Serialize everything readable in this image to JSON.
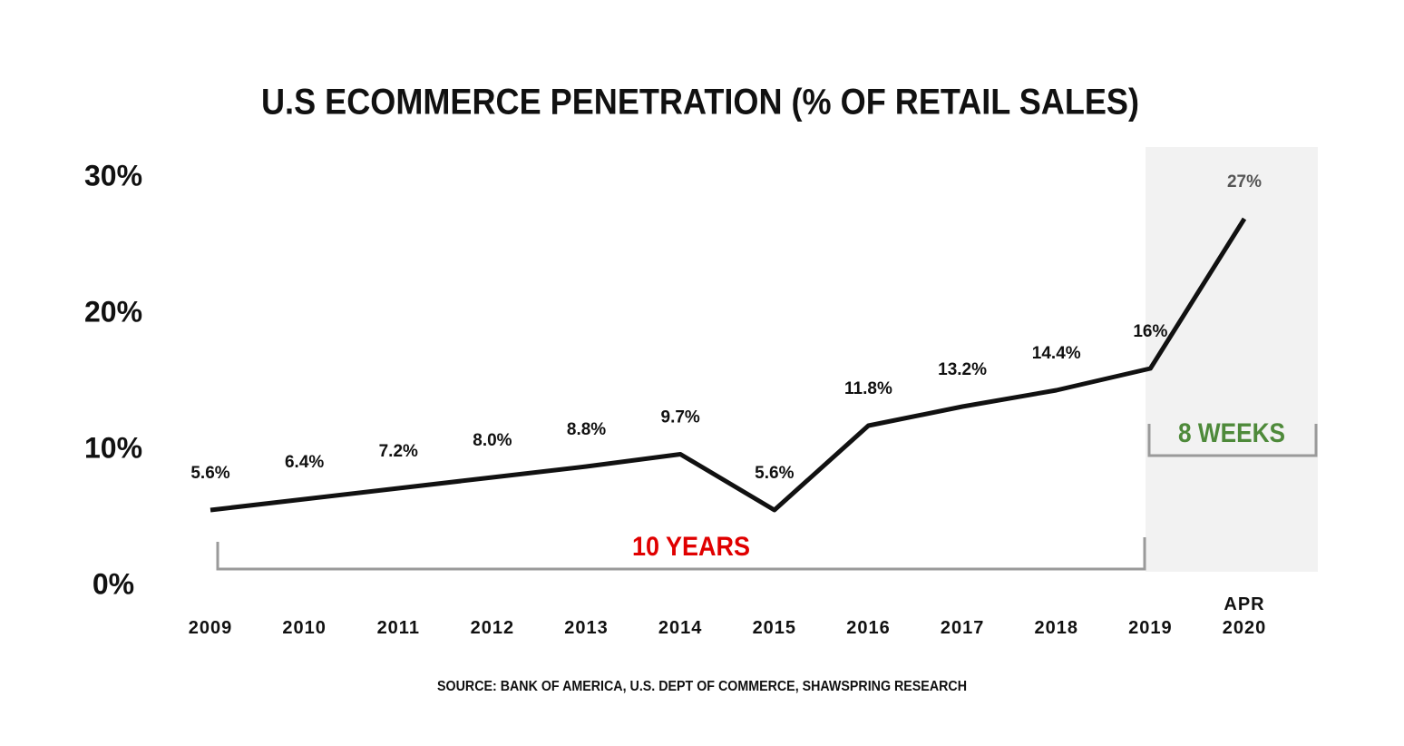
{
  "chart_data": {
    "type": "line",
    "title": "U.S ECOMMERCE PENETRATION (% OF RETAIL SALES)",
    "categories": [
      "2009",
      "2010",
      "2011",
      "2012",
      "2013",
      "2014",
      "2015",
      "2016",
      "2017",
      "2018",
      "2019",
      "APR 2020"
    ],
    "series": [
      {
        "name": "Ecommerce penetration",
        "color": "#111111",
        "values": [
          5.6,
          6.4,
          7.2,
          8.0,
          8.8,
          9.7,
          5.6,
          11.8,
          13.2,
          14.4,
          16,
          27
        ],
        "value_labels": [
          "5.6%",
          "6.4%",
          "7.2%",
          "8.0%",
          "8.8%",
          "9.7%",
          "5.6%",
          "11.8%",
          "13.2%",
          "14.4%",
          "16%",
          "27%"
        ]
      }
    ],
    "ylim": [
      0,
      30
    ],
    "yticks": [
      {
        "value": 0,
        "label": "0%"
      },
      {
        "value": 10,
        "label": "10%"
      },
      {
        "value": 20,
        "label": "20%"
      },
      {
        "value": 30,
        "label": "30%"
      }
    ],
    "grid": false,
    "annotations": [
      "10 YEARS",
      "8 WEEKS"
    ],
    "source": "SOURCE: BANK OF AMERICA, U.S. DEPT OF COMMERCE, SHAWSPRING RESEARCH"
  }
}
